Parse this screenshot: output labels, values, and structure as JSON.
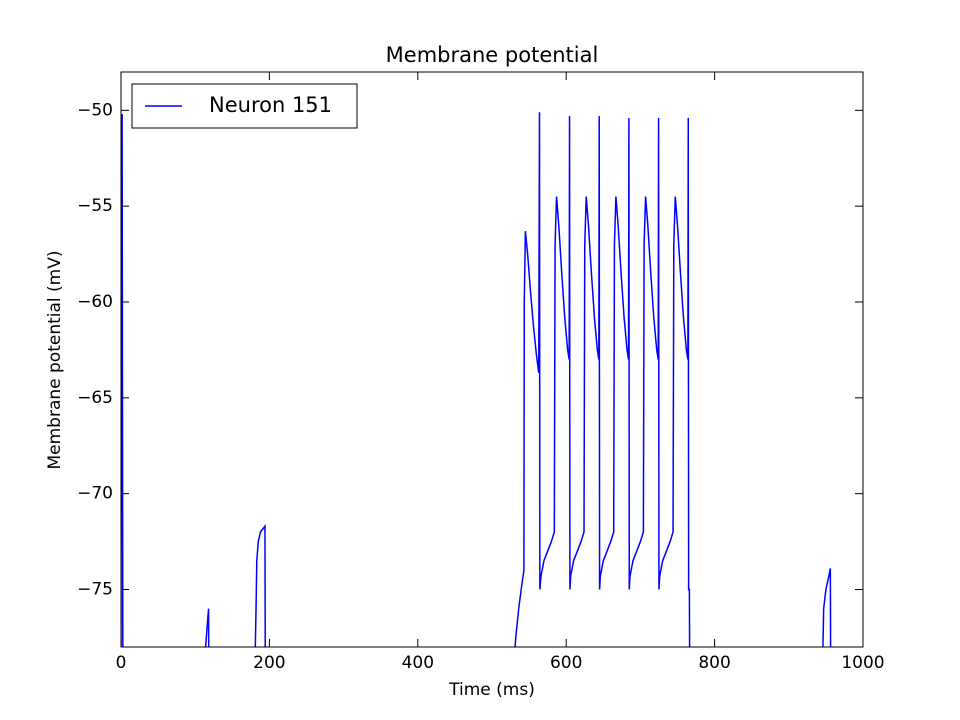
{
  "chart_data": {
    "type": "line",
    "title": "Membrane potential",
    "xlabel": "Time (ms)",
    "ylabel": "Membrane potential (mV)",
    "x": [
      0,
      0.3,
      1.5,
      2.5,
      112,
      114,
      116,
      118,
      118.5,
      180,
      182,
      183,
      185,
      188,
      194,
      194.5,
      528,
      532,
      536,
      540,
      543,
      543.5,
      545,
      548,
      552,
      556,
      560,
      563,
      564,
      564.5,
      566,
      570,
      575,
      580,
      584,
      585,
      587,
      590,
      594,
      598,
      602,
      604,
      604.5,
      605,
      606,
      610,
      615,
      620,
      624,
      625,
      627,
      630,
      634,
      638,
      642,
      644,
      644.5,
      645,
      646,
      650,
      655,
      660,
      664,
      665,
      667,
      670,
      674,
      678,
      682,
      684,
      684.5,
      685,
      686,
      690,
      695,
      700,
      704,
      705,
      707,
      710,
      714,
      718,
      722,
      724,
      724.5,
      725,
      726,
      730,
      735,
      740,
      744,
      745,
      747,
      750,
      754,
      758,
      762,
      764,
      764.5,
      765,
      766,
      766.5,
      945,
      947,
      950,
      954,
      956,
      956.5
    ],
    "series": [
      {
        "name": "Neuron 151",
        "color": "#0000ff",
        "values": [
          -80,
          -61.5,
          -50.2,
          -80,
          -80,
          -78,
          -77,
          -76,
          -80,
          -80,
          -76,
          -73.5,
          -72.5,
          -72,
          -71.7,
          -80,
          -80,
          -77.5,
          -76,
          -74.8,
          -74,
          -60,
          -56.3,
          -57.5,
          -59.5,
          -61.3,
          -62.8,
          -63.7,
          -50.1,
          -75,
          -74.3,
          -73.5,
          -73,
          -72.5,
          -72,
          -57,
          -54.5,
          -56,
          -58.5,
          -60.8,
          -62.5,
          -63,
          -50.3,
          -75,
          -74.3,
          -73.5,
          -73,
          -72.5,
          -72,
          -57,
          -54.5,
          -56,
          -58.5,
          -60.8,
          -62.5,
          -63,
          -50.3,
          -75,
          -74.3,
          -73.5,
          -73,
          -72.5,
          -72,
          -57,
          -54.5,
          -56,
          -58.5,
          -60.8,
          -62.5,
          -63,
          -50.4,
          -75,
          -74.3,
          -73.5,
          -73,
          -72.5,
          -72,
          -57,
          -54.5,
          -56,
          -58.5,
          -60.8,
          -62.5,
          -63,
          -50.4,
          -75,
          -74.3,
          -73.5,
          -73,
          -72.5,
          -72,
          -57,
          -54.5,
          -56,
          -58.5,
          -60.8,
          -62.5,
          -63,
          -50.4,
          -75,
          -75,
          -80,
          -80,
          -76,
          -75,
          -74.3,
          -73.9,
          -80
        ]
      }
    ],
    "xlim": [
      0,
      1000
    ],
    "ylim": [
      -78,
      -48
    ],
    "xticks": [
      0,
      200,
      400,
      600,
      800,
      1000
    ],
    "yticks": [
      {
        "value": -75,
        "label": "−75"
      },
      {
        "value": -70,
        "label": "−70"
      },
      {
        "value": -65,
        "label": "−65"
      },
      {
        "value": -60,
        "label": "−60"
      },
      {
        "value": -55,
        "label": "−55"
      },
      {
        "value": -50,
        "label": "−50"
      }
    ],
    "legend": "upper left"
  }
}
